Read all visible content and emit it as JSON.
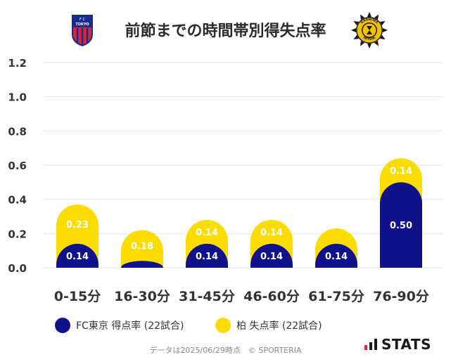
{
  "header": {
    "title": "前節までの時間帯別得失点率",
    "home_logo_text": "F C TOKYO",
    "away_logo_text": "KASHIWA REYSOL"
  },
  "legend": {
    "home_label": "FC東京 得点率 (22試合)",
    "away_label": "柏 失点率 (22試合)"
  },
  "footer": {
    "note": "データは2025/06/29時点　© SPORTERIA"
  },
  "brand": {
    "name": "STATS"
  },
  "colors": {
    "home": "#10128a",
    "away": "#fbdc00",
    "grid": "#e3e3e3",
    "axis_text": "#333333",
    "bar_label": "#ffffff"
  },
  "chart_data": {
    "type": "bar",
    "stacked": true,
    "categories": [
      "0-15分",
      "16-30分",
      "31-45分",
      "46-60分",
      "61-75分",
      "76-90分"
    ],
    "series": [
      {
        "name": "FC東京 得点率 (22試合)",
        "values": [
          0.14,
          0.04,
          0.14,
          0.14,
          0.14,
          0.5
        ],
        "labels": [
          "0.14",
          "",
          "0.14",
          "0.14",
          "0.14",
          "0.50"
        ]
      },
      {
        "name": "柏 失点率 (22試合)",
        "values": [
          0.23,
          0.18,
          0.14,
          0.14,
          0.09,
          0.14
        ],
        "labels": [
          "0.23",
          "0.18",
          "0.14",
          "0.14",
          "",
          "0.14"
        ]
      }
    ],
    "ylim": [
      0,
      1.2
    ],
    "yticks": [
      "0.0",
      "0.2",
      "0.4",
      "0.6",
      "0.8",
      "1.0",
      "1.2"
    ],
    "grid": true,
    "legend_position": "bottom"
  }
}
